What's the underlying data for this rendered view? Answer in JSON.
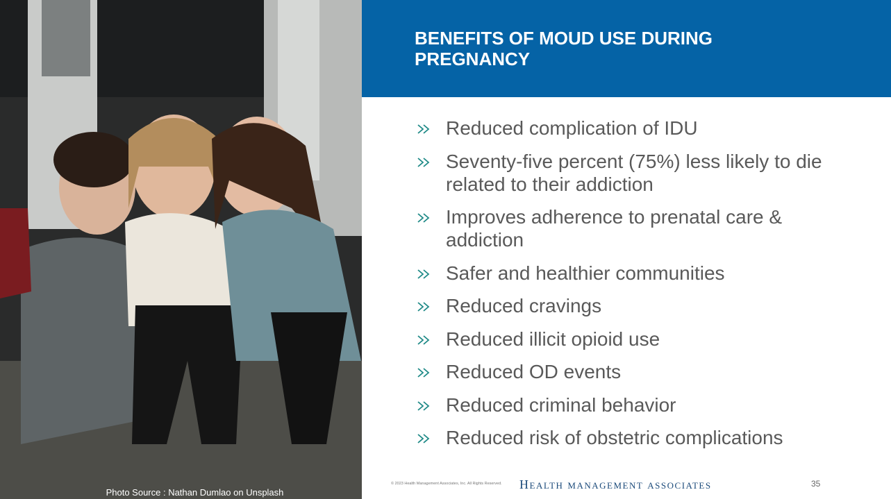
{
  "slide": {
    "title": "BENEFITS OF MOUD USE DURING PREGNANCY",
    "bullets": [
      "Reduced complication of IDU",
      "Seventy-five percent (75%) less likely to die related to their addiction",
      "Improves adherence to prenatal care & addiction",
      "Safer and healthier communities",
      "Reduced cravings",
      "Reduced illicit opioid use",
      "Reduced OD events",
      "Reduced criminal behavior",
      "Reduced risk of obstetric complications"
    ],
    "photo_credit": "Photo Source : Nathan Dumlao on Unsplash",
    "footer": {
      "copyright": "© 2023 Health Management Associates, Inc. All Rights Reserved.",
      "brand": "Health Management Associates",
      "page_number": 35
    }
  }
}
